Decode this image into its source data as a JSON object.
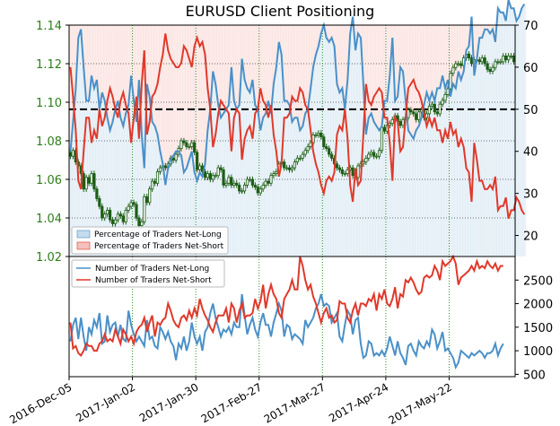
{
  "chart_data": [
    {
      "type": "candlestick+line",
      "title": "EURUSD Client Positioning",
      "left_axis": {
        "ticks": [
          "1.14",
          "1.12",
          "1.10",
          "1.08",
          "1.06",
          "1.04",
          "1.02"
        ],
        "values": [
          1.14,
          1.12,
          1.1,
          1.08,
          1.06,
          1.04,
          1.02
        ],
        "ylim": [
          1.02,
          1.14
        ],
        "color": "#2e7d1a"
      },
      "right_axis": {
        "ticks": [
          "70",
          "60",
          "50",
          "40",
          "30",
          "20"
        ],
        "values": [
          70,
          60,
          50,
          40,
          30,
          20
        ],
        "ylim": [
          15,
          70
        ]
      },
      "reference_line": 50,
      "legend": [
        "Percentage of Traders Net-Long",
        "Percentage of Traders Net-Short"
      ],
      "legend_position": "bottom-left",
      "series": [
        {
          "name": "Percentage of Traders Net-Long",
          "color": "#4a90c8",
          "values": [
            40,
            47,
            55,
            67,
            69,
            60,
            52,
            52,
            58,
            55,
            57,
            50,
            54,
            52,
            48,
            45,
            47,
            50,
            52,
            48,
            46,
            49,
            51,
            58,
            52,
            47,
            57,
            44,
            36,
            56,
            53,
            47,
            46,
            44,
            40,
            37,
            32,
            36,
            38,
            39,
            40,
            40,
            39,
            35,
            36,
            38,
            40,
            35,
            33,
            35,
            34,
            37,
            45,
            50,
            59,
            56,
            51,
            48,
            49,
            50,
            51,
            60,
            52,
            50,
            51,
            62,
            57,
            55,
            54,
            57,
            51,
            50,
            45,
            48,
            49,
            52,
            49,
            56,
            60,
            66,
            63,
            52,
            52,
            51,
            47,
            48,
            48,
            45,
            46,
            49,
            50,
            55,
            60,
            63,
            65,
            68,
            70,
            67,
            66,
            67,
            65,
            56,
            54,
            55,
            50,
            57,
            68,
            72,
            64,
            68,
            67,
            56,
            44,
            48,
            49,
            47,
            46,
            45,
            46,
            52,
            52,
            58,
            67,
            52,
            53,
            60,
            59,
            52,
            45,
            44,
            43,
            45,
            46,
            48,
            51,
            54,
            52,
            54,
            52,
            55,
            55,
            58,
            55,
            57,
            53,
            56,
            55,
            59,
            57,
            59,
            64,
            65,
            72,
            58,
            62,
            67,
            67,
            69,
            69,
            68,
            69,
            66,
            74,
            73,
            73,
            71,
            76,
            74,
            74,
            71,
            72,
            74,
            75
          ]
        },
        {
          "name": "Percentage of Traders Net-Short",
          "color": "#e0392b",
          "values": [
            60,
            53,
            45,
            33,
            31,
            40,
            48,
            48,
            42,
            45,
            43,
            50,
            46,
            48,
            52,
            55,
            53,
            50,
            48,
            52,
            54,
            51,
            49,
            42,
            48,
            53,
            43,
            56,
            64,
            44,
            47,
            53,
            54,
            56,
            60,
            63,
            68,
            64,
            62,
            61,
            60,
            60,
            61,
            65,
            64,
            62,
            60,
            65,
            67,
            65,
            66,
            63,
            55,
            50,
            41,
            44,
            49,
            52,
            51,
            50,
            49,
            40,
            48,
            50,
            49,
            38,
            43,
            45,
            46,
            43,
            49,
            50,
            55,
            52,
            51,
            48,
            51,
            44,
            40,
            34,
            37,
            48,
            48,
            49,
            53,
            52,
            52,
            55,
            54,
            51,
            50,
            45,
            40,
            37,
            35,
            32,
            30,
            33,
            34,
            33,
            35,
            44,
            46,
            45,
            50,
            43,
            32,
            28,
            36,
            32,
            33,
            44,
            56,
            52,
            51,
            53,
            54,
            55,
            54,
            48,
            48,
            42,
            33,
            48,
            47,
            40,
            41,
            48,
            55,
            56,
            57,
            55,
            54,
            52,
            49,
            46,
            48,
            46,
            48,
            45,
            45,
            42,
            45,
            43,
            47,
            44,
            45,
            41,
            43,
            41,
            36,
            35,
            28,
            42,
            38,
            33,
            33,
            31,
            31,
            32,
            31,
            34,
            26,
            27,
            27,
            29,
            24,
            26,
            26,
            29,
            28,
            26,
            25
          ]
        }
      ]
    },
    {
      "type": "line",
      "x_ticks": [
        "2016-Dec-05",
        "2017-Jan-02",
        "2017-Jan-30",
        "2017-Feb-27",
        "2017-Mar-27",
        "2017-Apr-24",
        "2017-May-22"
      ],
      "right_axis": {
        "ticks": [
          "2500",
          "2000",
          "1500",
          "1000",
          "500"
        ],
        "values": [
          2500,
          2000,
          1500,
          1000,
          500
        ],
        "ylim": [
          450,
          3000
        ]
      },
      "legend": [
        "Number of Traders Net-Long",
        "Number of Traders Net-Short"
      ],
      "legend_position": "top-left",
      "series": [
        {
          "name": "Number of Traders Net-Long",
          "color": "#4a90c8",
          "values": [
            1200,
            1550,
            1700,
            1250,
            1700,
            1300,
            1000,
            1500,
            1350,
            1650,
            1500,
            1800,
            1150,
            1200,
            1750,
            1400,
            1550,
            1600,
            1300,
            1550,
            1250,
            1200,
            1850,
            1550,
            1350,
            1200,
            1300,
            1200,
            1100,
            1650,
            1250,
            1300,
            1100,
            1050,
            1500,
            1400,
            1250,
            1400,
            1200,
            1100,
            800,
            1150,
            1050,
            1300,
            1000,
            1200,
            1600,
            1300,
            1150,
            1300,
            1000,
            1400,
            1500,
            1800,
            2000,
            1700,
            1500,
            1300,
            1450,
            1400,
            1500,
            1350,
            1600,
            1500,
            1500,
            2200,
            1750,
            1350,
            1550,
            1700,
            1450,
            1300,
            1600,
            1800,
            1550,
            1550,
            1300,
            1600,
            1800,
            2000,
            1850,
            1300,
            1550,
            1500,
            1250,
            1350,
            1300,
            1250,
            1150,
            1650,
            1500,
            1600,
            1700,
            1900,
            2000,
            2200,
            1950,
            2000,
            1950,
            1600,
            1700,
            1800,
            1300,
            1200,
            1550,
            1850,
            1750,
            1350,
            1650,
            1700,
            1150,
            850,
            900,
            1200,
            1150,
            900,
            950,
            900,
            1000,
            900,
            1050,
            1300,
            1100,
            900,
            1200,
            950,
            850,
            700,
            1100,
            1150,
            1000,
            900,
            1200,
            1100,
            1050,
            1200,
            1100,
            1450,
            1350,
            1050,
            1200,
            1400,
            1000,
            1050,
            950,
            850,
            650,
            750,
            1000,
            950,
            900,
            850,
            950,
            900,
            950,
            1000,
            950,
            850,
            950,
            950,
            1000,
            1150,
            900,
            1050,
            1150
          ]
        },
        {
          "name": "Number of Traders Net-Short",
          "color": "#e0392b",
          "values": [
            1600,
            1050,
            1100,
            950,
            900,
            1000,
            1150,
            1100,
            1100,
            1000,
            1000,
            1150,
            1200,
            1350,
            1200,
            1250,
            1200,
            1450,
            1300,
            1150,
            1450,
            1350,
            1200,
            1300,
            1150,
            1400,
            1500,
            1550,
            1700,
            1400,
            1600,
            1750,
            1300,
            1600,
            1550,
            1650,
            1700,
            2000,
            1850,
            1650,
            1550,
            1500,
            1700,
            1750,
            1650,
            1850,
            1700,
            1900,
            1750,
            2100,
            1900,
            1750,
            1650,
            1500,
            1400,
            1600,
            1750,
            1750,
            1750,
            1900,
            1600,
            2000,
            1900,
            1600,
            1850,
            2000,
            1700,
            1750,
            1750,
            1800,
            2100,
            1900,
            2050,
            2400,
            1900,
            2200,
            2400,
            2200,
            2100,
            1800,
            1700,
            2100,
            2200,
            2300,
            2500,
            2300,
            2300,
            3000,
            2800,
            2500,
            2300,
            2400,
            2150,
            2000,
            1800,
            1600,
            1800,
            1900,
            1700,
            1750,
            1600,
            1650,
            2050,
            2000,
            2000,
            1700,
            1600,
            1850,
            2000,
            1750,
            2000,
            2000,
            1950,
            2100,
            2050,
            2200,
            1850,
            2200,
            2100,
            2300,
            2000,
            1950,
            2100,
            2350,
            1900,
            2200,
            2150,
            2500,
            2450,
            2550,
            2450,
            2300,
            2200,
            2250,
            2550,
            2600,
            2550,
            2600,
            2800,
            2700,
            2500,
            2900,
            2800,
            2850,
            2900,
            3000,
            2850,
            2400,
            2550,
            2600,
            2650,
            2700,
            2800,
            2700,
            2900,
            2750,
            2800,
            2750,
            2900,
            2800,
            2750,
            2850,
            2700,
            2800,
            2800
          ]
        }
      ]
    }
  ],
  "candles": {
    "color": "#1d5e16",
    "close": [
      1.072,
      1.075,
      1.069,
      1.067,
      1.063,
      1.055,
      1.061,
      1.058,
      1.063,
      1.055,
      1.05,
      1.046,
      1.04,
      1.042,
      1.044,
      1.039,
      1.037,
      1.039,
      1.042,
      1.041,
      1.038,
      1.044,
      1.046,
      1.048,
      1.047,
      1.04,
      1.036,
      1.038,
      1.051,
      1.048,
      1.055,
      1.059,
      1.058,
      1.064,
      1.066,
      1.067,
      1.066,
      1.068,
      1.071,
      1.07,
      1.073,
      1.076,
      1.08,
      1.079,
      1.077,
      1.077,
      1.079,
      1.074,
      1.065,
      1.067,
      1.064,
      1.061,
      1.063,
      1.06,
      1.062,
      1.062,
      1.066,
      1.065,
      1.057,
      1.058,
      1.061,
      1.057,
      1.058,
      1.057,
      1.054,
      1.054,
      1.057,
      1.06,
      1.06,
      1.057,
      1.056,
      1.053,
      1.055,
      1.057,
      1.059,
      1.058,
      1.062,
      1.063,
      1.064,
      1.068,
      1.069,
      1.066,
      1.066,
      1.065,
      1.066,
      1.069,
      1.071,
      1.071,
      1.073,
      1.075,
      1.077,
      1.079,
      1.083,
      1.083,
      1.084,
      1.082,
      1.077,
      1.076,
      1.073,
      1.071,
      1.068,
      1.066,
      1.065,
      1.063,
      1.063,
      1.065,
      1.066,
      1.062,
      1.061,
      1.067,
      1.068,
      1.069,
      1.071,
      1.073,
      1.074,
      1.072,
      1.072,
      1.075,
      1.087,
      1.085,
      1.088,
      1.089,
      1.091,
      1.093,
      1.09,
      1.088,
      1.091,
      1.092,
      1.096,
      1.095,
      1.094,
      1.091,
      1.095,
      1.096,
      1.092,
      1.094,
      1.098,
      1.099,
      1.095,
      1.094,
      1.099,
      1.101,
      1.104,
      1.107,
      1.115,
      1.118,
      1.12,
      1.12,
      1.119,
      1.123,
      1.125,
      1.123,
      1.12,
      1.122,
      1.122,
      1.121,
      1.123,
      1.12,
      1.117,
      1.116,
      1.118,
      1.121,
      1.121,
      1.121,
      1.124,
      1.122,
      1.124,
      1.124,
      1.121
    ]
  },
  "x_ticks": [
    "2016-Dec-05",
    "2017-Jan-02",
    "2017-Jan-30",
    "2017-Feb-27",
    "2017-Mar-27",
    "2017-Apr-24",
    "2017-May-22"
  ],
  "colors": {
    "long": "#4a90c8",
    "short": "#e0392b",
    "left_axis": "#2e7d1a",
    "grid": "#2f8f2f"
  }
}
